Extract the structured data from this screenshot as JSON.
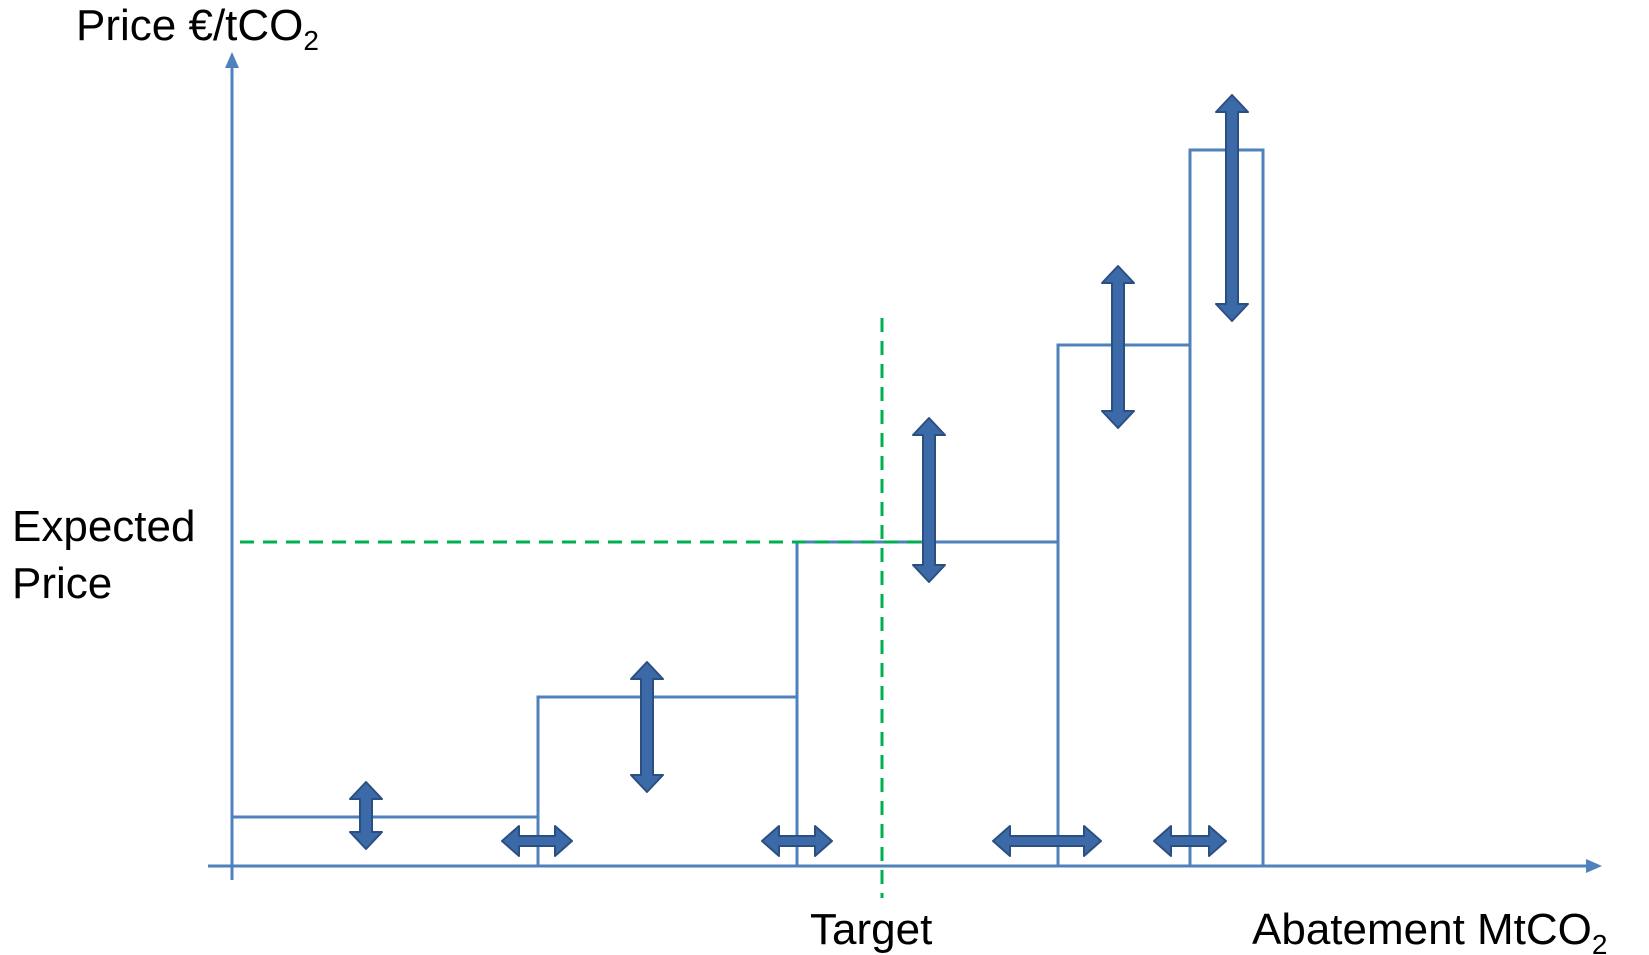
{
  "labels": {
    "y_axis": "Price €/tCO",
    "y_axis_sub": "2",
    "x_axis": "Abatement MtCO",
    "x_axis_sub": "2",
    "expected_line1": "Expected",
    "expected_line2": "Price",
    "target": "Target"
  },
  "colors": {
    "axis": "#4f81bd",
    "curve": "#4f81bd",
    "dashed_reference": "#00b050",
    "uncertainty_arrow": "#3c6aa8"
  },
  "icons": {
    "vertical_uncertainty": "double-headed-vertical-arrow",
    "horizontal_uncertainty": "double-headed-horizontal-arrow"
  }
}
